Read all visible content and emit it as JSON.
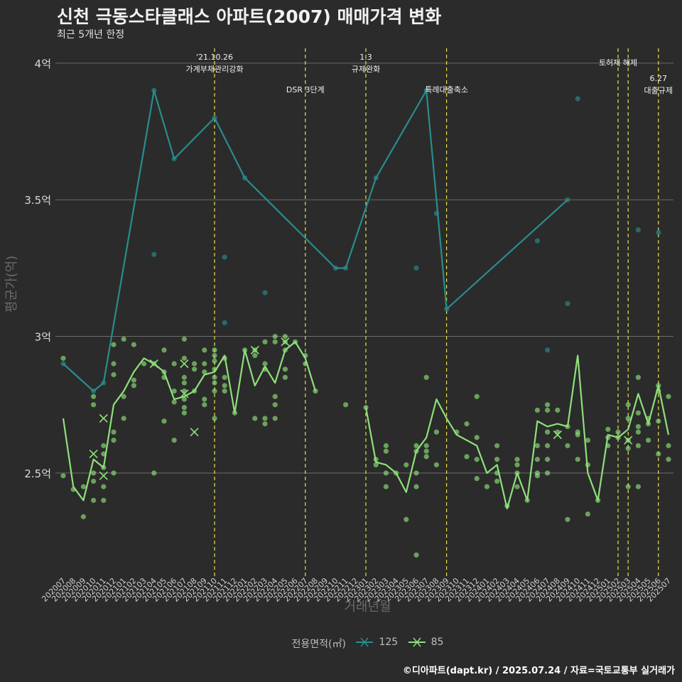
{
  "header": {
    "title": "신천 극동스타클래스 아파트(2007) 매매가격 변화",
    "subtitle": "최근 5개년 한정"
  },
  "axes": {
    "ylabel": "평균가(억)",
    "xlabel": "거래년월"
  },
  "legend": {
    "title": "전용면적(㎡)",
    "items": [
      {
        "label": "125",
        "color": "#2a8c8c"
      },
      {
        "label": "85",
        "color": "#8ee07a"
      }
    ]
  },
  "caption": "©디아파트(dapt.kr) / 2025.07.24 / 자료=국토교통부 실거래가",
  "chart_data": {
    "type": "line",
    "ylim": [
      2.12,
      4.07
    ],
    "yticks": [
      2.5,
      3,
      3.5,
      4
    ],
    "ytick_labels": [
      "2.5억",
      "3억",
      "3.5억",
      "4억"
    ],
    "grid": true,
    "legend_position": "bottom",
    "categories": [
      "202007",
      "202008",
      "202009",
      "202010",
      "202011",
      "202012",
      "202101",
      "202102",
      "202103",
      "202104",
      "202105",
      "202106",
      "202107",
      "202108",
      "202109",
      "202110",
      "202111",
      "202112",
      "202201",
      "202202",
      "202203",
      "202204",
      "202205",
      "202206",
      "202207",
      "202208",
      "202209",
      "202210",
      "202211",
      "202212",
      "202301",
      "202302",
      "202303",
      "202304",
      "202305",
      "202306",
      "202307",
      "202308",
      "202309",
      "202310",
      "202311",
      "202312",
      "202401",
      "202402",
      "202403",
      "202404",
      "202405",
      "202406",
      "202407",
      "202408",
      "202409",
      "202410",
      "202411",
      "202412",
      "202501",
      "202502",
      "202503",
      "202504",
      "202505",
      "202506",
      "202507"
    ],
    "series": [
      {
        "name": "125",
        "color": "#2a8c8c",
        "points": [
          [
            "202007",
            2.9
          ],
          [
            "202010",
            2.8
          ],
          [
            "202011",
            2.83
          ],
          [
            "202104",
            3.9
          ],
          [
            "202106",
            3.65
          ],
          [
            "202110",
            3.8
          ],
          [
            "202201",
            3.58
          ],
          [
            "202210",
            3.25
          ],
          [
            "202211",
            3.25
          ],
          [
            "202302",
            3.58
          ],
          [
            "202307",
            3.9
          ],
          [
            "202309",
            3.1
          ],
          [
            "202409",
            3.5
          ]
        ]
      },
      {
        "name": "85",
        "color": "#8ee07a",
        "values": [
          2.7,
          2.45,
          2.4,
          2.55,
          2.52,
          2.75,
          2.8,
          2.87,
          2.92,
          2.9,
          2.87,
          2.77,
          2.78,
          2.8,
          2.86,
          2.87,
          2.93,
          2.72,
          2.95,
          2.82,
          2.89,
          2.83,
          2.95,
          2.98,
          2.92,
          2.8,
          null,
          null,
          null,
          null,
          2.74,
          2.54,
          2.53,
          2.5,
          2.43,
          2.58,
          2.63,
          2.77,
          2.7,
          2.64,
          2.62,
          2.6,
          2.5,
          2.53,
          2.37,
          2.5,
          2.4,
          2.69,
          2.67,
          2.68,
          2.67,
          2.93,
          2.5,
          2.4,
          2.64,
          2.63,
          2.66,
          2.79,
          2.68,
          2.82,
          2.64
        ]
      }
    ],
    "scatter": {
      "125": [
        [
          "202007",
          2.9
        ],
        [
          "202010",
          2.8
        ],
        [
          "202011",
          2.83
        ],
        [
          "202104",
          3.9
        ],
        [
          "202104",
          3.3
        ],
        [
          "202106",
          3.65
        ],
        [
          "202110",
          3.8
        ],
        [
          "202111",
          3.29
        ],
        [
          "202111",
          3.05
        ],
        [
          "202201",
          3.58
        ],
        [
          "202203",
          3.16
        ],
        [
          "202210",
          3.25
        ],
        [
          "202211",
          3.25
        ],
        [
          "202302",
          3.58
        ],
        [
          "202306",
          3.25
        ],
        [
          "202307",
          3.9
        ],
        [
          "202308",
          3.45
        ],
        [
          "202309",
          3.1
        ],
        [
          "202406",
          3.35
        ],
        [
          "202407",
          2.95
        ],
        [
          "202409",
          3.5
        ],
        [
          "202409",
          3.12
        ],
        [
          "202410",
          3.87
        ],
        [
          "202504",
          3.39
        ],
        [
          "202506",
          3.38
        ]
      ],
      "85": [
        [
          "202007",
          2.92
        ],
        [
          "202007",
          2.49
        ],
        [
          "202008",
          2.44
        ],
        [
          "202009",
          2.34
        ],
        [
          "202009",
          2.45
        ],
        [
          "202010",
          2.47
        ],
        [
          "202010",
          2.5
        ],
        [
          "202010",
          2.4
        ],
        [
          "202010",
          2.75
        ],
        [
          "202010",
          2.78
        ],
        [
          "202011",
          2.6
        ],
        [
          "202011",
          2.57
        ],
        [
          "202011",
          2.52
        ],
        [
          "202011",
          2.45
        ],
        [
          "202011",
          2.4
        ],
        [
          "202012",
          2.97
        ],
        [
          "202012",
          2.9
        ],
        [
          "202012",
          2.86
        ],
        [
          "202012",
          2.65
        ],
        [
          "202012",
          2.62
        ],
        [
          "202012",
          2.5
        ],
        [
          "202101",
          2.99
        ],
        [
          "202101",
          2.78
        ],
        [
          "202101",
          2.7
        ],
        [
          "202102",
          2.97
        ],
        [
          "202102",
          2.84
        ],
        [
          "202102",
          2.82
        ],
        [
          "202103",
          2.9
        ],
        [
          "202104",
          2.9
        ],
        [
          "202104",
          2.5
        ],
        [
          "202105",
          2.95
        ],
        [
          "202105",
          2.87
        ],
        [
          "202105",
          2.85
        ],
        [
          "202105",
          2.69
        ],
        [
          "202106",
          2.9
        ],
        [
          "202106",
          2.8
        ],
        [
          "202106",
          2.76
        ],
        [
          "202106",
          2.62
        ],
        [
          "202107",
          2.99
        ],
        [
          "202107",
          2.92
        ],
        [
          "202107",
          2.85
        ],
        [
          "202107",
          2.83
        ],
        [
          "202107",
          2.8
        ],
        [
          "202107",
          2.77
        ],
        [
          "202107",
          2.74
        ],
        [
          "202107",
          2.72
        ],
        [
          "202108",
          2.9
        ],
        [
          "202108",
          2.88
        ],
        [
          "202108",
          2.8
        ],
        [
          "202109",
          2.95
        ],
        [
          "202109",
          2.9
        ],
        [
          "202109",
          2.87
        ],
        [
          "202109",
          2.77
        ],
        [
          "202109",
          2.75
        ],
        [
          "202110",
          2.95
        ],
        [
          "202110",
          2.93
        ],
        [
          "202110",
          2.91
        ],
        [
          "202110",
          2.88
        ],
        [
          "202110",
          2.85
        ],
        [
          "202110",
          2.83
        ],
        [
          "202110",
          2.8
        ],
        [
          "202110",
          2.7
        ],
        [
          "202111",
          2.92
        ],
        [
          "202111",
          2.85
        ],
        [
          "202111",
          2.82
        ],
        [
          "202111",
          2.8
        ],
        [
          "202112",
          2.72
        ],
        [
          "202201",
          2.95
        ],
        [
          "202202",
          2.95
        ],
        [
          "202202",
          2.93
        ],
        [
          "202202",
          2.7
        ],
        [
          "202203",
          2.98
        ],
        [
          "202203",
          2.9
        ],
        [
          "202203",
          2.88
        ],
        [
          "202203",
          2.7
        ],
        [
          "202203",
          2.68
        ],
        [
          "202204",
          3.0
        ],
        [
          "202204",
          2.98
        ],
        [
          "202204",
          2.78
        ],
        [
          "202204",
          2.75
        ],
        [
          "202204",
          2.7
        ],
        [
          "202205",
          3.0
        ],
        [
          "202205",
          2.98
        ],
        [
          "202205",
          2.95
        ],
        [
          "202205",
          2.88
        ],
        [
          "202205",
          2.85
        ],
        [
          "202206",
          2.98
        ],
        [
          "202207",
          2.93
        ],
        [
          "202207",
          2.9
        ],
        [
          "202208",
          2.8
        ],
        [
          "202211",
          2.75
        ],
        [
          "202301",
          2.74
        ],
        [
          "202302",
          2.55
        ],
        [
          "202302",
          2.53
        ],
        [
          "202303",
          2.6
        ],
        [
          "202303",
          2.58
        ],
        [
          "202303",
          2.5
        ],
        [
          "202303",
          2.45
        ],
        [
          "202304",
          2.5
        ],
        [
          "202305",
          2.53
        ],
        [
          "202305",
          2.33
        ],
        [
          "202306",
          2.6
        ],
        [
          "202306",
          2.58
        ],
        [
          "202306",
          2.5
        ],
        [
          "202306",
          2.45
        ],
        [
          "202306",
          2.2
        ],
        [
          "202307",
          2.85
        ],
        [
          "202307",
          2.6
        ],
        [
          "202307",
          2.58
        ],
        [
          "202307",
          2.56
        ],
        [
          "202308",
          2.65
        ],
        [
          "202308",
          2.53
        ],
        [
          "202310",
          2.65
        ],
        [
          "202311",
          2.68
        ],
        [
          "202311",
          2.56
        ],
        [
          "202312",
          2.78
        ],
        [
          "202312",
          2.63
        ],
        [
          "202312",
          2.55
        ],
        [
          "202312",
          2.48
        ],
        [
          "202401",
          2.45
        ],
        [
          "202402",
          2.6
        ],
        [
          "202402",
          2.55
        ],
        [
          "202402",
          2.5
        ],
        [
          "202402",
          2.47
        ],
        [
          "202403",
          2.38
        ],
        [
          "202404",
          2.55
        ],
        [
          "202404",
          2.53
        ],
        [
          "202404",
          2.5
        ],
        [
          "202404",
          2.45
        ],
        [
          "202405",
          2.4
        ],
        [
          "202406",
          2.73
        ],
        [
          "202406",
          2.6
        ],
        [
          "202406",
          2.55
        ],
        [
          "202406",
          2.5
        ],
        [
          "202406",
          2.49
        ],
        [
          "202407",
          2.75
        ],
        [
          "202407",
          2.73
        ],
        [
          "202407",
          2.65
        ],
        [
          "202407",
          2.6
        ],
        [
          "202407",
          2.55
        ],
        [
          "202407",
          2.5
        ],
        [
          "202408",
          2.73
        ],
        [
          "202408",
          2.65
        ],
        [
          "202409",
          2.67
        ],
        [
          "202409",
          2.6
        ],
        [
          "202409",
          2.33
        ],
        [
          "202410",
          2.65
        ],
        [
          "202410",
          2.64
        ],
        [
          "202410",
          2.55
        ],
        [
          "202411",
          2.62
        ],
        [
          "202411",
          2.53
        ],
        [
          "202411",
          2.35
        ],
        [
          "202412",
          2.4
        ],
        [
          "202501",
          2.66
        ],
        [
          "202501",
          2.63
        ],
        [
          "202501",
          2.6
        ],
        [
          "202502",
          2.65
        ],
        [
          "202502",
          2.63
        ],
        [
          "202503",
          2.75
        ],
        [
          "202503",
          2.7
        ],
        [
          "202503",
          2.62
        ],
        [
          "202503",
          2.59
        ],
        [
          "202503",
          2.45
        ],
        [
          "202504",
          2.85
        ],
        [
          "202504",
          2.72
        ],
        [
          "202504",
          2.67
        ],
        [
          "202504",
          2.65
        ],
        [
          "202504",
          2.6
        ],
        [
          "202504",
          2.45
        ],
        [
          "202505",
          2.7
        ],
        [
          "202505",
          2.68
        ],
        [
          "202505",
          2.62
        ],
        [
          "202506",
          2.82
        ],
        [
          "202506",
          2.8
        ],
        [
          "202506",
          2.69
        ],
        [
          "202506",
          2.57
        ],
        [
          "202507",
          2.78
        ],
        [
          "202507",
          2.6
        ],
        [
          "202507",
          2.55
        ]
      ]
    },
    "markers_x": {
      "125": [],
      "85": [
        [
          "202010",
          2.57
        ],
        [
          "202011",
          2.7
        ],
        [
          "202011",
          2.49
        ],
        [
          "202104",
          2.9
        ],
        [
          "202107",
          2.9
        ],
        [
          "202107",
          2.79
        ],
        [
          "202108",
          2.65
        ],
        [
          "202202",
          2.95
        ],
        [
          "202205",
          2.98
        ],
        [
          "202408",
          2.64
        ],
        [
          "202503",
          2.62
        ]
      ]
    },
    "annotations": [
      {
        "x": "202110",
        "label": "'21.10.26\n가계부채관리강화",
        "color": "#e8e04a",
        "row": 0
      },
      {
        "x": "202207",
        "label": "DSR 3단계",
        "color": "#e8e04a",
        "row": 1
      },
      {
        "x": "202301",
        "label": "1.3\n규제완화",
        "color": "#e8e04a",
        "row": 0
      },
      {
        "x": "202309",
        "label": "특례대출축소",
        "color": "#e8e04a",
        "row": 1
      },
      {
        "x": "202502",
        "label": "토허제 해제",
        "color": "#e8e04a",
        "row": 0
      },
      {
        "x": "202503",
        "label": "",
        "color": "#e8e04a",
        "row": 0
      },
      {
        "x": "202506",
        "label": "6.27\n대출규제",
        "color": "#e8e04a",
        "row": 2
      }
    ]
  }
}
